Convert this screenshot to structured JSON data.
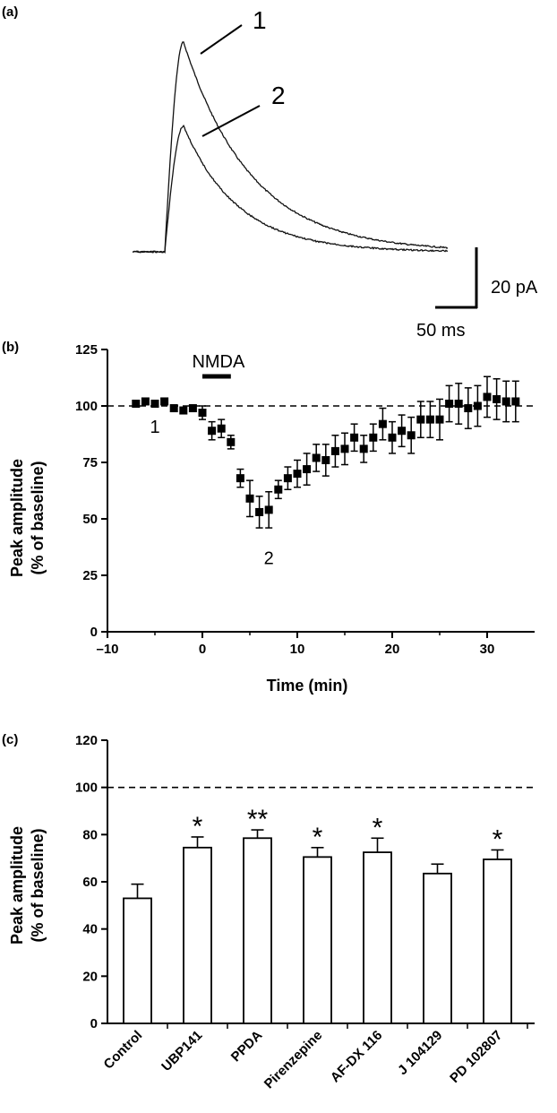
{
  "panel_a": {
    "label": "(a)",
    "trace_labels": [
      "1",
      "2"
    ],
    "scale_bar": {
      "y_label": "20 pA",
      "x_label": "50 ms"
    }
  },
  "panel_b": {
    "label": "(b)",
    "drug_label": "NMDA",
    "point_labels": [
      "1",
      "2"
    ]
  },
  "panel_c": {
    "label": "(c)"
  },
  "chart_data": [
    {
      "type": "line",
      "panel": "(a)",
      "xlabel": "",
      "ylabel": "",
      "series": [
        {
          "name": "1",
          "peak_relative": 1.0
        },
        {
          "name": "2",
          "peak_relative": 0.6
        }
      ],
      "scale_bar": {
        "y": "20 pA",
        "x": "50 ms"
      }
    },
    {
      "type": "scatter",
      "panel": "(b)",
      "xlabel": "Time (min)",
      "ylabel": "Peak amplitude\n(% of baseline)",
      "xlim": [
        -10,
        35
      ],
      "ylim": [
        0,
        125
      ],
      "xticks": [
        -10,
        0,
        10,
        20,
        30
      ],
      "xtick_labels": [
        "–10",
        "0",
        "10",
        "20",
        "30"
      ],
      "yticks": [
        0,
        25,
        50,
        75,
        100,
        125
      ],
      "reference_line": 100,
      "drug_bar": {
        "label": "NMDA",
        "start": 0,
        "end": 3
      },
      "x": [
        -7,
        -6,
        -5,
        -4,
        -3,
        -2,
        -1,
        0,
        1,
        2,
        3,
        4,
        5,
        6,
        7,
        8,
        9,
        10,
        11,
        12,
        13,
        14,
        15,
        16,
        17,
        18,
        19,
        20,
        21,
        22,
        23,
        24,
        25,
        26,
        27,
        28,
        29,
        30,
        31,
        32,
        33
      ],
      "y": [
        101,
        102,
        101,
        102,
        99,
        98,
        99,
        97,
        89,
        90,
        84,
        68,
        59,
        53,
        54,
        63,
        68,
        70,
        72,
        77,
        76,
        80,
        81,
        86,
        81,
        86,
        92,
        86,
        89,
        87,
        94,
        94,
        94,
        101,
        101,
        99,
        100,
        104,
        103,
        102,
        102
      ],
      "err": [
        1,
        1,
        1,
        1,
        1,
        1,
        1,
        3,
        4,
        4,
        3,
        4,
        8,
        7,
        8,
        4,
        5,
        6,
        7,
        6,
        7,
        7,
        7,
        6,
        6,
        6,
        7,
        7,
        7,
        8,
        8,
        8,
        9,
        8,
        9,
        9,
        9,
        9,
        9,
        9,
        9
      ],
      "point_labels": [
        {
          "text": "1",
          "x": -5,
          "y": 88
        },
        {
          "text": "2",
          "x": 7,
          "y": 30
        }
      ]
    },
    {
      "type": "bar",
      "panel": "(c)",
      "xlabel": "",
      "ylabel": "Peak amplitude\n(% of baseline)",
      "ylim": [
        0,
        120
      ],
      "yticks": [
        0,
        20,
        40,
        60,
        80,
        100,
        120
      ],
      "reference_line": 100,
      "categories": [
        "Control",
        "UBP141",
        "PPDA",
        "Pirenzepine",
        "AF-DX 116",
        "J 104129",
        "PD 102807"
      ],
      "values": [
        53,
        74.5,
        78.5,
        70.5,
        72.5,
        63.5,
        69.5
      ],
      "errors": [
        6,
        4.5,
        3.5,
        4,
        6,
        4,
        4
      ],
      "significance": [
        "",
        "*",
        "**",
        "*",
        "*",
        "",
        "*"
      ]
    }
  ]
}
